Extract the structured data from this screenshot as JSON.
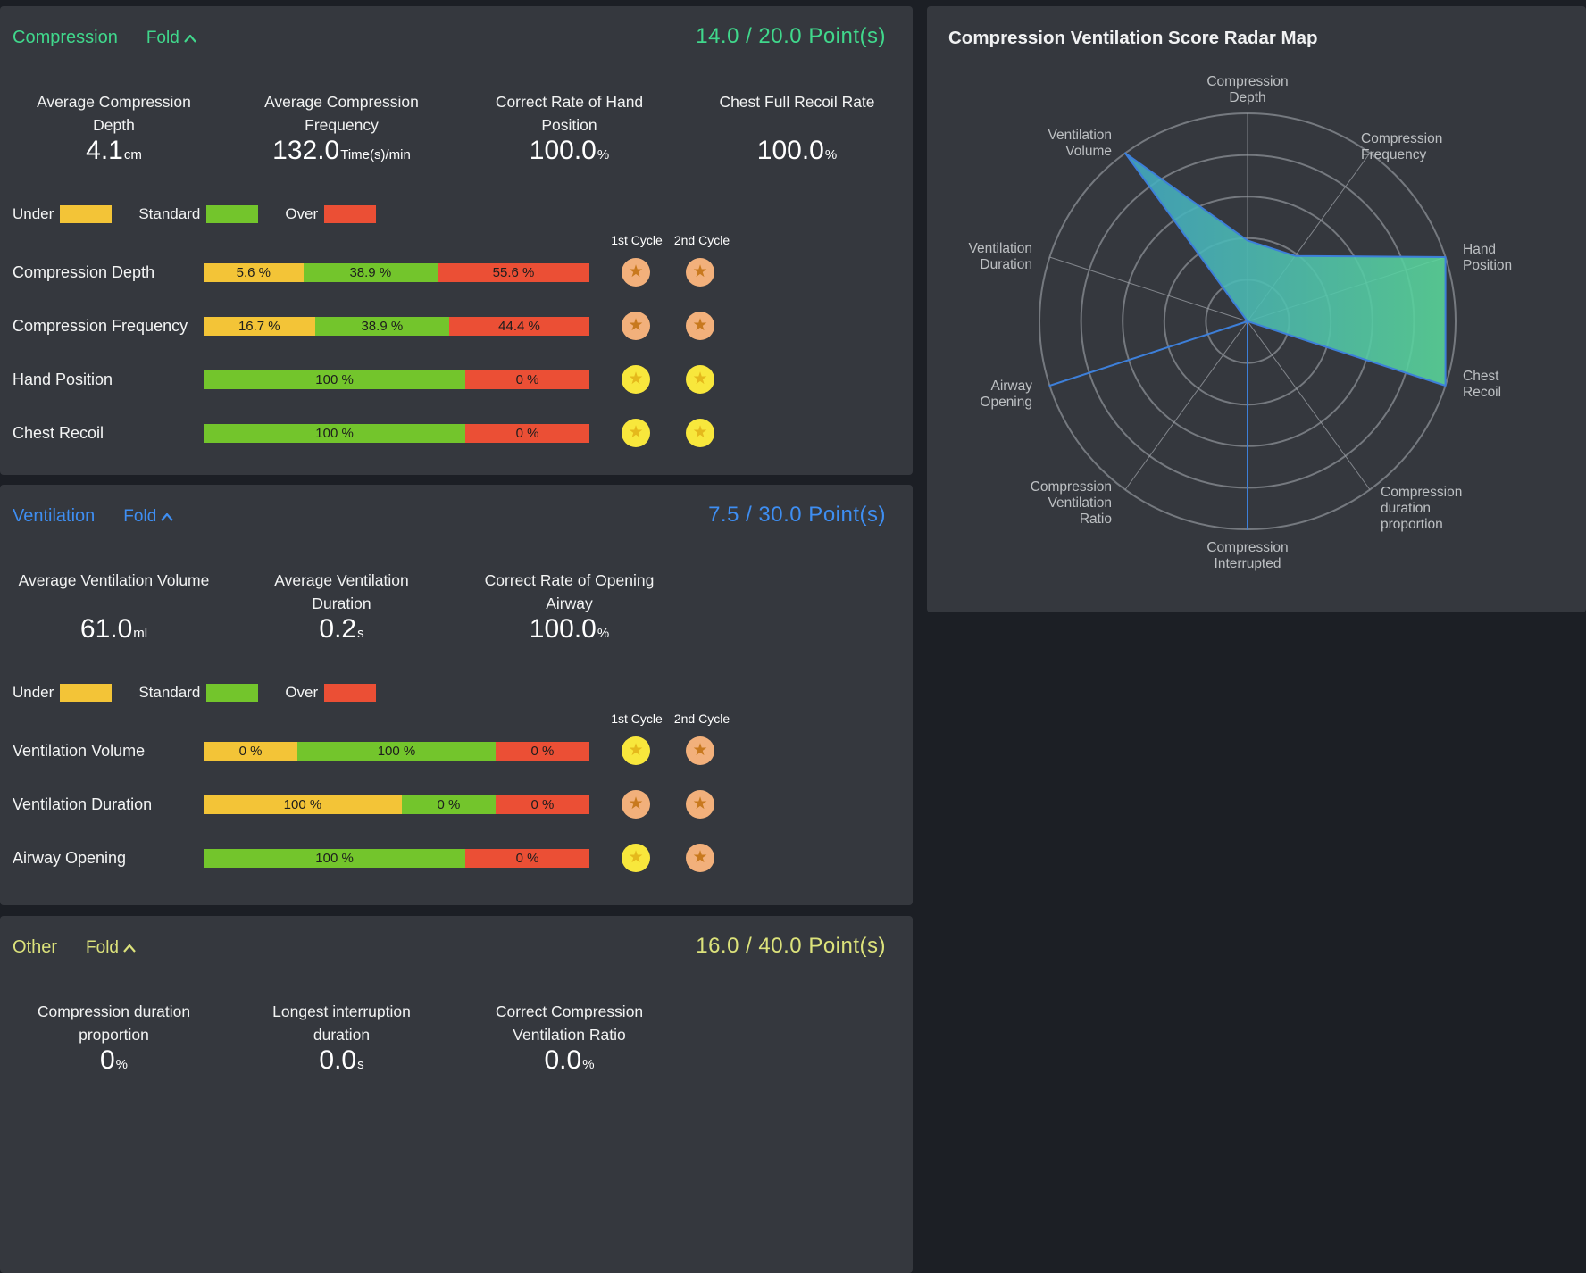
{
  "colors": {
    "page_background": "#1c1f25",
    "panel_background": "#35383e",
    "accent_compression": "#40d88c",
    "accent_ventilation": "#3e8ef2",
    "accent_other": "#dce27b",
    "band_under": "#f3c437",
    "band_standard": "#73c52c",
    "band_over": "#eb4f35",
    "badge_gold_bg": "#f8e73c",
    "badge_gold_star": "#e5b91c",
    "badge_bronze_bg": "#f2b07b",
    "badge_bronze_star": "#c8791e",
    "radar_stroke": "#3d7fd9",
    "radar_fill_left": "#3da0ce",
    "radar_fill_right": "#5ad79a",
    "radar_ring": "#75797f",
    "radar_axis": "#9ca0a6"
  },
  "panels": {
    "compression": {
      "title": "Compression",
      "fold_label": "Fold",
      "points_text": "14.0 / 20.0 Point(s)",
      "score": "14.0",
      "score_total": "20.0",
      "accent": "#40d88c",
      "stats": [
        {
          "label_lines": [
            "Average Compression",
            "Depth"
          ],
          "value": "4.1",
          "unit": "cm"
        },
        {
          "label_lines": [
            "Average Compression",
            "Frequency"
          ],
          "value": "132.0",
          "unit": "Time(s)/min"
        },
        {
          "label_lines": [
            "Correct Rate of Hand",
            "Position"
          ],
          "value": "100.0",
          "unit": "%"
        },
        {
          "label_lines": [
            "Chest Full Recoil Rate"
          ],
          "value": "100.0",
          "unit": "%"
        }
      ],
      "legend": [
        {
          "label": "Under",
          "band": "under"
        },
        {
          "label": "Standard",
          "band": "standard"
        },
        {
          "label": "Over",
          "band": "over"
        }
      ],
      "cycle_headers": [
        "1st Cycle",
        "2nd Cycle"
      ],
      "rows": [
        {
          "label": "Compression Depth",
          "segments": [
            {
              "band": "under",
              "value": 5.6,
              "text": "5.6 %"
            },
            {
              "band": "standard",
              "value": 38.9,
              "text": "38.9 %"
            },
            {
              "band": "over",
              "value": 55.6,
              "text": "55.6 %"
            }
          ],
          "badges": [
            "bronze",
            "bronze"
          ]
        },
        {
          "label": "Compression Frequency",
          "segments": [
            {
              "band": "under",
              "value": 16.7,
              "text": "16.7 %"
            },
            {
              "band": "standard",
              "value": 38.9,
              "text": "38.9 %"
            },
            {
              "band": "over",
              "value": 44.4,
              "text": "44.4 %"
            }
          ],
          "badges": [
            "bronze",
            "bronze"
          ]
        },
        {
          "label": "Hand Position",
          "segments": [
            {
              "band": "standard",
              "value": 100,
              "text": "100 %"
            },
            {
              "band": "over",
              "value": 0,
              "text": "0 %"
            }
          ],
          "badges": [
            "gold",
            "gold"
          ]
        },
        {
          "label": "Chest Recoil",
          "segments": [
            {
              "band": "standard",
              "value": 100,
              "text": "100 %"
            },
            {
              "band": "over",
              "value": 0,
              "text": "0 %"
            }
          ],
          "badges": [
            "gold",
            "gold"
          ]
        }
      ]
    },
    "ventilation": {
      "title": "Ventilation",
      "fold_label": "Fold",
      "points_text": "7.5 / 30.0 Point(s)",
      "score": "7.5",
      "score_total": "30.0",
      "accent": "#3e8ef2",
      "stats": [
        {
          "label_lines": [
            "Average Ventilation Volume"
          ],
          "value": "61.0",
          "unit": "ml"
        },
        {
          "label_lines": [
            "Average Ventilation",
            "Duration"
          ],
          "value": "0.2",
          "unit": "s"
        },
        {
          "label_lines": [
            "Correct Rate of Opening",
            "Airway"
          ],
          "value": "100.0",
          "unit": "%"
        }
      ],
      "legend": [
        {
          "label": "Under",
          "band": "under"
        },
        {
          "label": "Standard",
          "band": "standard"
        },
        {
          "label": "Over",
          "band": "over"
        }
      ],
      "cycle_headers": [
        "1st Cycle",
        "2nd Cycle"
      ],
      "rows": [
        {
          "label": "Ventilation Volume",
          "segments": [
            {
              "band": "under",
              "value": 0,
              "text": "0 %"
            },
            {
              "band": "standard",
              "value": 100,
              "text": "100 %"
            },
            {
              "band": "over",
              "value": 0,
              "text": "0 %"
            }
          ],
          "badges": [
            "gold",
            "bronze"
          ]
        },
        {
          "label": "Ventilation Duration",
          "segments": [
            {
              "band": "under",
              "value": 100,
              "text": "100 %"
            },
            {
              "band": "standard",
              "value": 0,
              "text": "0 %"
            },
            {
              "band": "over",
              "value": 0,
              "text": "0 %"
            }
          ],
          "badges": [
            "bronze",
            "bronze"
          ]
        },
        {
          "label": "Airway Opening",
          "segments": [
            {
              "band": "standard",
              "value": 100,
              "text": "100 %"
            },
            {
              "band": "over",
              "value": 0,
              "text": "0 %"
            }
          ],
          "badges": [
            "gold",
            "bronze"
          ]
        }
      ]
    },
    "other": {
      "title": "Other",
      "fold_label": "Fold",
      "points_text": "16.0 / 40.0 Point(s)",
      "score": "16.0",
      "score_total": "40.0",
      "accent": "#dce27b",
      "stats": [
        {
          "label_lines": [
            "Compression duration",
            "proportion"
          ],
          "value": "0",
          "unit": "%"
        },
        {
          "label_lines": [
            "Longest interruption",
            "duration"
          ],
          "value": "0.0",
          "unit": "s"
        },
        {
          "label_lines": [
            "Correct Compression",
            "Ventilation Ratio"
          ],
          "value": "0.0",
          "unit": "%"
        }
      ],
      "legend": [],
      "cycle_headers": [],
      "rows": []
    }
  },
  "radar": {
    "title": "Compression Ventilation Score Radar Map"
  },
  "chart_data": {
    "type": "radar",
    "title": "Compression Ventilation Score Radar Map",
    "max": 100,
    "rings": 5,
    "legend_position": "none",
    "indicators": [
      {
        "label_lines": [
          "Compression",
          "Depth"
        ],
        "value": 38.9
      },
      {
        "label_lines": [
          "Compression",
          "Frequency"
        ],
        "value": 38.9
      },
      {
        "label_lines": [
          "Hand",
          "Position"
        ],
        "value": 100
      },
      {
        "label_lines": [
          "Chest",
          "Recoil"
        ],
        "value": 100
      },
      {
        "label_lines": [
          "Compression",
          "duration",
          "proportion"
        ],
        "value": 0
      },
      {
        "label_lines": [
          "Compression",
          "Interrupted"
        ],
        "value": 100
      },
      {
        "label_lines": [
          "Compression",
          "Ventilation",
          "Ratio"
        ],
        "value": 0
      },
      {
        "label_lines": [
          "Airway",
          "Opening"
        ],
        "value": 100
      },
      {
        "label_lines": [
          "Ventilation",
          "Duration"
        ],
        "value": 0
      },
      {
        "label_lines": [
          "Ventilation",
          "Volume"
        ],
        "value": 100
      }
    ]
  }
}
